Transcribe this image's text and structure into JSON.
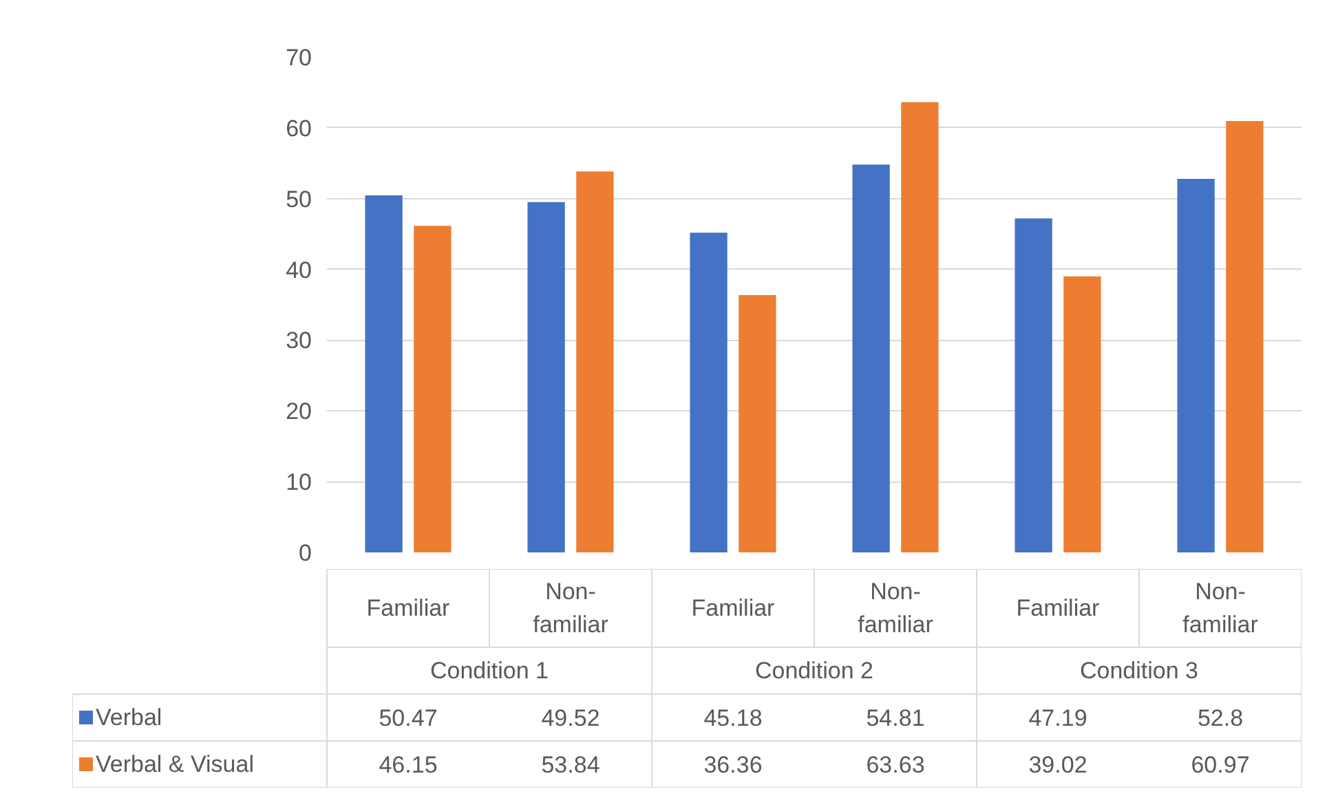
{
  "chart_data": {
    "type": "bar",
    "categories": [
      "Familiar",
      "Non-familiar",
      "Familiar",
      "Non-familiar",
      "Familiar",
      "Non-familiar"
    ],
    "annotations": [
      "Condition 1",
      "Condition 2",
      "Condition 3"
    ],
    "series": [
      {
        "name": "Verbal",
        "color": "#4472c4",
        "values": [
          50.47,
          49.52,
          45.18,
          54.81,
          47.19,
          52.8
        ]
      },
      {
        "name": "Verbal & Visual",
        "color": "#ed7d31",
        "values": [
          46.15,
          53.84,
          36.36,
          63.63,
          39.02,
          60.97
        ]
      }
    ],
    "ylim": [
      0,
      70
    ],
    "yticks": [
      0,
      10,
      20,
      30,
      40,
      50,
      60,
      70
    ],
    "grid": "y",
    "legend": "bottom",
    "data_labels": true
  }
}
